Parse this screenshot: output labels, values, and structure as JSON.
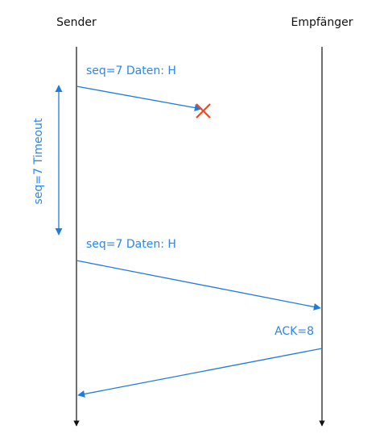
{
  "participants": [
    "Sender",
    "Empfänger"
  ],
  "messages": [
    {
      "label": "seq=7 Daten: H"
    },
    {
      "label": "seq=7 Daten: H"
    },
    {
      "label": "ACK=8"
    }
  ],
  "timeout": {
    "label": "seq=7 Timeout"
  }
}
